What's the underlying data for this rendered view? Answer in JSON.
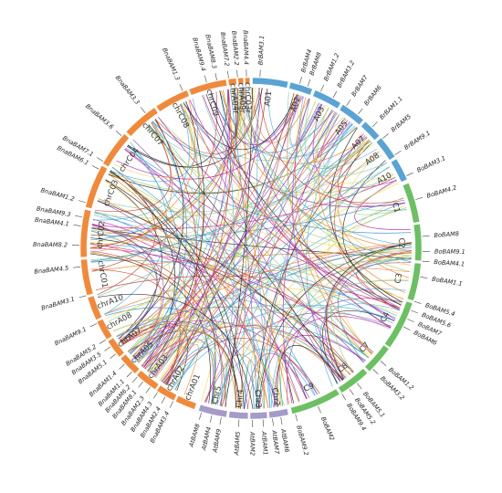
{
  "colors": {
    "Bna_C": "#ef8a3c",
    "Bna_A": "#ef8a3c",
    "Br": "#5aa3d2",
    "Bo": "#6cbf62",
    "At": "#a59ac8",
    "link_palette": [
      "#1a1a1a",
      "#c0392b",
      "#e67e22",
      "#b5179e",
      "#8e44ad",
      "#4aa8d8",
      "#7fc8a9",
      "#9ccc65",
      "#f4d35e",
      "#2e86c1"
    ]
  },
  "chromosomes": [
    {
      "id": "Br_A01",
      "label": "A01",
      "group": "Br"
    },
    {
      "id": "Br_A02",
      "label": "A02",
      "group": "Br"
    },
    {
      "id": "Br_A03",
      "label": "A03",
      "group": "Br"
    },
    {
      "id": "Br_A05",
      "label": "A05",
      "group": "Br"
    },
    {
      "id": "Br_A07",
      "label": "A07",
      "group": "Br"
    },
    {
      "id": "Br_A08",
      "label": "A08",
      "group": "Br"
    },
    {
      "id": "Br_A10",
      "label": "A10",
      "group": "Br"
    },
    {
      "id": "Bo_C1",
      "label": "C1",
      "group": "Bo"
    },
    {
      "id": "Bo_C2",
      "label": "C2",
      "group": "Bo"
    },
    {
      "id": "Bo_C3",
      "label": "C3",
      "group": "Bo"
    },
    {
      "id": "Bo_C4",
      "label": "C4",
      "group": "Bo"
    },
    {
      "id": "Bo_C7",
      "label": "C7",
      "group": "Bo"
    },
    {
      "id": "Bo_C8",
      "label": "C8",
      "group": "Bo"
    },
    {
      "id": "Bo_C9",
      "label": "C9",
      "group": "Bo"
    },
    {
      "id": "At_Chr2",
      "label": "Chr2",
      "group": "At"
    },
    {
      "id": "At_Chr3",
      "label": "Chr3",
      "group": "At"
    },
    {
      "id": "At_Chr4",
      "label": "Chr4",
      "group": "At"
    },
    {
      "id": "At_Chr5",
      "label": "Chr5",
      "group": "At"
    },
    {
      "id": "Bna_chrA01",
      "label": "chrA01",
      "group": "Bna_A"
    },
    {
      "id": "Bna_chrA02",
      "label": "chrA02",
      "group": "Bna_A"
    },
    {
      "id": "Bna_chrA03",
      "label": "chrA03",
      "group": "Bna_A"
    },
    {
      "id": "Bna_chrA05",
      "label": "chrA05",
      "group": "Bna_A"
    },
    {
      "id": "Bna_chrA07",
      "label": "chrA07",
      "group": "Bna_A"
    },
    {
      "id": "Bna_chrA08",
      "label": "chrA08",
      "group": "Bna_A"
    },
    {
      "id": "Bna_chrA10",
      "label": "chrA10",
      "group": "Bna_A"
    },
    {
      "id": "Bna_chrC01",
      "label": "chrC01",
      "group": "Bna_C"
    },
    {
      "id": "Bna_chrC02",
      "label": "chrC02",
      "group": "Bna_C"
    },
    {
      "id": "Bna_chrC03",
      "label": "chrC03",
      "group": "Bna_C"
    },
    {
      "id": "Bna_chrC04",
      "label": "chrC04",
      "group": "Bna_C"
    },
    {
      "id": "Bna_chrC07",
      "label": "chrC07",
      "group": "Bna_C"
    },
    {
      "id": "Bna_chrC08",
      "label": "chrC08",
      "group": "Bna_C"
    },
    {
      "id": "Bna_chrC09",
      "label": "chrC09",
      "group": "Bna_C"
    },
    {
      "id": "Bna_chrA04r",
      "label": "chrA04r",
      "group": "Bna_A"
    },
    {
      "id": "Bna_chrA09r",
      "label": "chrA09r",
      "group": "Bna_A"
    },
    {
      "id": "Bna_chrC03r",
      "label": "chrC03r",
      "group": "Bna_C"
    }
  ],
  "genes": [
    {
      "label": "BrBAM3.1"
    },
    {
      "label": "BrBAM4"
    },
    {
      "label": "BrBAM8"
    },
    {
      "label": "BrBAM1.2"
    },
    {
      "label": "BrBAM3.2"
    },
    {
      "label": "BrBAM7"
    },
    {
      "label": "BrBAM6"
    },
    {
      "label": "BrBAM1.1"
    },
    {
      "label": "BrBAM5"
    },
    {
      "label": "BrBAM9.1"
    },
    {
      "label": "BoBAM3.1"
    },
    {
      "label": "BoBAM4.2"
    },
    {
      "label": "BoBAM8"
    },
    {
      "label": "BoBAM9.1"
    },
    {
      "label": "BoBAM4.1"
    },
    {
      "label": "BoBAM1.1"
    },
    {
      "label": "BoBAM5.4"
    },
    {
      "label": "BoBAM5.6"
    },
    {
      "label": "BoBAM7"
    },
    {
      "label": "BoBAM6"
    },
    {
      "label": "BoBAM1.2"
    },
    {
      "label": "BoBAM3.2"
    },
    {
      "label": "BoBAM5.1"
    },
    {
      "label": "BoBAM5.2"
    },
    {
      "label": "BoBAM9.4"
    },
    {
      "label": "BoBAM2"
    },
    {
      "label": "BoBAM9.2"
    },
    {
      "label": "AtBAM6"
    },
    {
      "label": "AtBAM7"
    },
    {
      "label": "AtBAM1"
    },
    {
      "label": "AtBAM2"
    },
    {
      "label": "AtBAM5"
    },
    {
      "label": "AtBAM9"
    },
    {
      "label": "AtBAM4"
    },
    {
      "label": "AtBAM8"
    },
    {
      "label": "BnaBAM3.4"
    },
    {
      "label": "BnaBAM2.4"
    },
    {
      "label": "BnaBAM4.3"
    },
    {
      "label": "BnaBAM2.3"
    },
    {
      "label": "BnaBAM8.1"
    },
    {
      "label": "BnaBAM6.2"
    },
    {
      "label": "BnaBAM1.1"
    },
    {
      "label": "BnaBAM1.4"
    },
    {
      "label": "BnaBAM5.1"
    },
    {
      "label": "BnaBAM3.5"
    },
    {
      "label": "BnaBAM5.2"
    },
    {
      "label": "BnaBAM9.1"
    },
    {
      "label": "BnaBAM3.1"
    },
    {
      "label": "BnaBAM4.5"
    },
    {
      "label": "BnaBAM8.2"
    },
    {
      "label": "BnaBAM4.1"
    },
    {
      "label": "BnaBAM9.3"
    },
    {
      "label": "BnaBAM1.2"
    },
    {
      "label": "BnaBAM6.1"
    },
    {
      "label": "BnaBAM7.1"
    },
    {
      "label": "BnaBAM3.6"
    },
    {
      "label": "BnaBAM3.3"
    },
    {
      "label": "BnaBAM1.3"
    },
    {
      "label": "BnaBAM9.4"
    },
    {
      "label": "BnaBAM8.3"
    },
    {
      "label": "BnaBAM7.2"
    },
    {
      "label": "BnaBAM2.2"
    },
    {
      "label": "BnaBAM4.4"
    }
  ]
}
